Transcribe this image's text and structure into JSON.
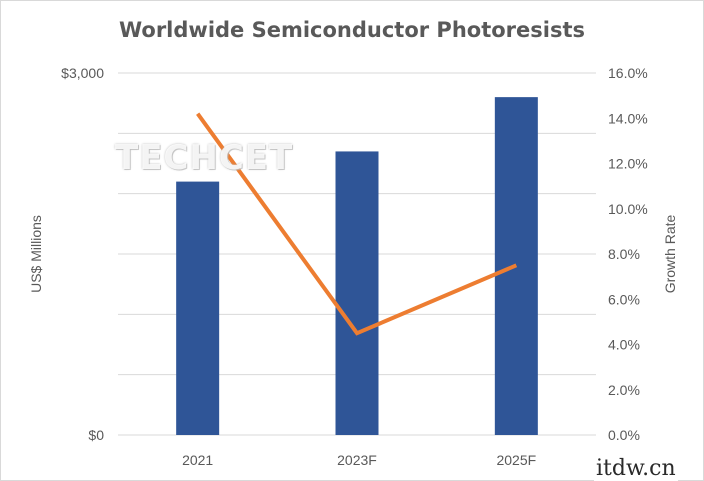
{
  "chart_data": {
    "type": "bar",
    "title": "Worldwide Semiconductor Photoresists",
    "categories": [
      "2021",
      "2023F",
      "2025F"
    ],
    "series": [
      {
        "type": "bar",
        "axis": "left",
        "values": [
          2100,
          2350,
          2800
        ],
        "color": "#2f5597"
      },
      {
        "type": "line",
        "axis": "right",
        "values": [
          14.2,
          4.5,
          7.5
        ],
        "color": "#ed7d31"
      }
    ],
    "ylabel": "US$ Millions",
    "ylabel_right": "Growth Rate",
    "ylim": [
      0,
      3000
    ],
    "ylim_right": [
      0,
      16
    ],
    "y_tick_labels": [
      "$0",
      "$3,000"
    ],
    "y_right_tick_labels": [
      "0.0%",
      "2.0%",
      "4.0%",
      "6.0%",
      "8.0%",
      "10.0%",
      "12.0%",
      "14.0%",
      "16.0%"
    ],
    "grid": true,
    "watermark": "TECHCET"
  },
  "site_mark": "itdw.cn",
  "colors": {
    "text": "#595959",
    "grid": "#d9d9d9",
    "bar": "#2f5597",
    "line": "#ed7d31"
  }
}
